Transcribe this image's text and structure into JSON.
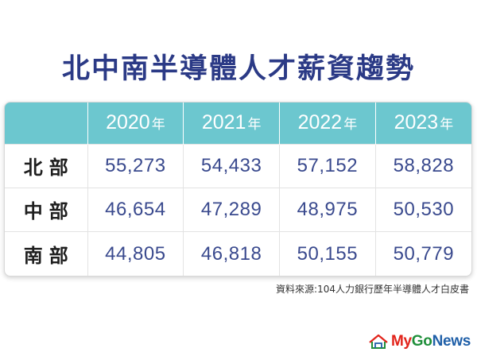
{
  "title": "北中南半導體人才薪資趨勢",
  "chart_data": {
    "type": "table",
    "title": "北中南半導體人才薪資趨勢",
    "year_unit": "年",
    "columns": [
      "2020",
      "2021",
      "2022",
      "2023"
    ],
    "rows": [
      {
        "label": "北部",
        "values": [
          "55,273",
          "54,433",
          "57,152",
          "58,828"
        ]
      },
      {
        "label": "中部",
        "values": [
          "46,654",
          "47,289",
          "48,975",
          "50,530"
        ]
      },
      {
        "label": "南部",
        "values": [
          "44,805",
          "46,818",
          "50,155",
          "50,779"
        ]
      }
    ]
  },
  "source": "資料來源:104人力銀行歷年半導體人才白皮書",
  "logo": {
    "text_my": "My",
    "text_go": "Go",
    "text_news": "News",
    "colors": {
      "my": "#e2231a",
      "go": "#1f8f3a",
      "news": "#1f5fa8"
    }
  },
  "colors": {
    "title": "#2b3a86",
    "header_bg": "#6cc7cf",
    "value_text": "#3a4a8e"
  }
}
